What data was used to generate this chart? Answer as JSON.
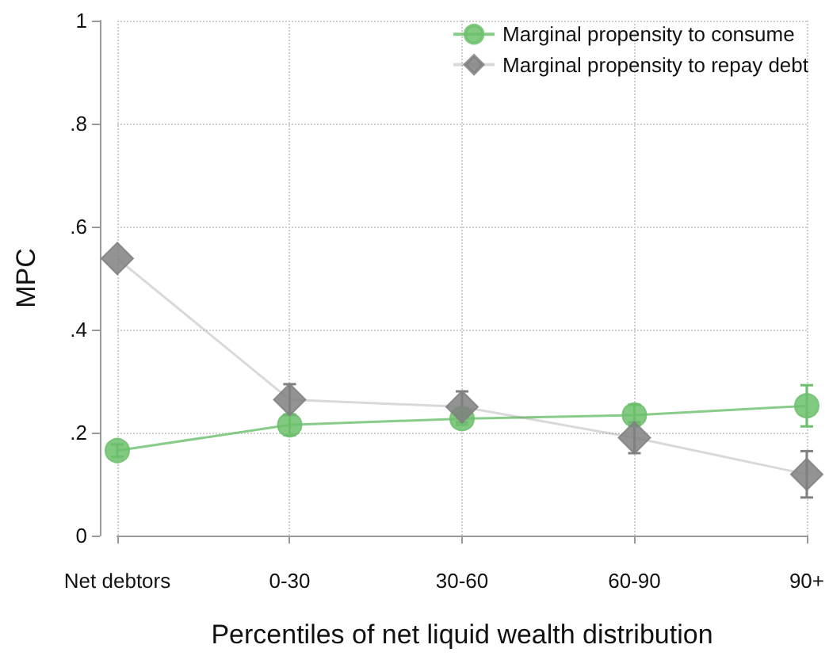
{
  "chart_data": {
    "type": "line",
    "xlabel": "Percentiles of net liquid wealth distribution",
    "ylabel": "MPC",
    "categories": [
      "Net debtors",
      "0-30",
      "30-60",
      "60-90",
      "90+"
    ],
    "series": [
      {
        "name": "Marginal propensity to consume",
        "color": "#6cbf6c",
        "marker": "circle",
        "values": [
          0.165,
          0.215,
          0.227,
          0.234,
          0.252
        ],
        "errors": [
          0.012,
          0.02,
          0.012,
          0.02,
          0.04
        ]
      },
      {
        "name": "Marginal propensity to repay debt",
        "color": "#808080",
        "marker": "diamond",
        "values": [
          0.538,
          0.264,
          0.25,
          0.19,
          0.119
        ],
        "errors": [
          null,
          0.03,
          0.03,
          0.03,
          0.045
        ]
      }
    ],
    "ylim": [
      0,
      1
    ],
    "yticks": [
      {
        "value": 0,
        "label": "0"
      },
      {
        "value": 0.2,
        "label": ".2"
      },
      {
        "value": 0.4,
        "label": ".4"
      },
      {
        "value": 0.6,
        "label": ".6"
      },
      {
        "value": 0.8,
        "label": ".8"
      },
      {
        "value": 1,
        "label": "1"
      }
    ],
    "grid": true,
    "legend": "top right",
    "line_style": "solid"
  }
}
